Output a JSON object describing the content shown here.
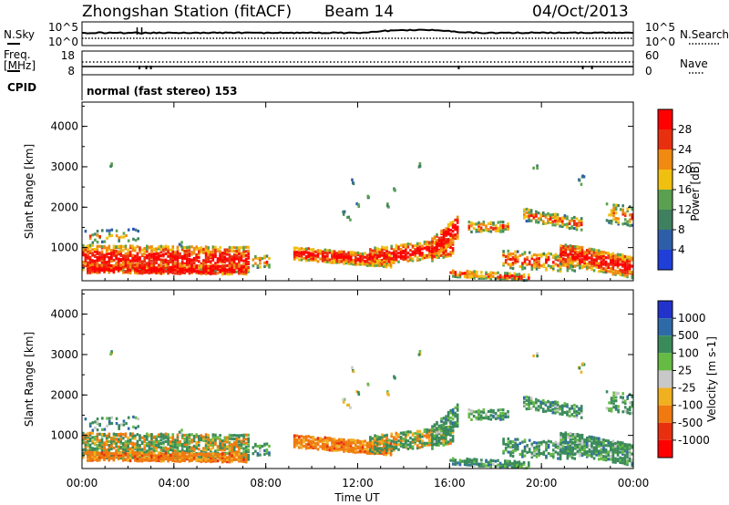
{
  "header": {
    "station": "Zhongshan Station (fitACF)",
    "beam": "Beam 14",
    "date": "04/Oct/2013"
  },
  "strip_top": {
    "left_label": "N.Sky",
    "right_label": "N.Search",
    "left_ticks": [
      "10^5",
      "10^0"
    ],
    "right_ticks": [
      "10^5",
      "10^0"
    ]
  },
  "strip_mid": {
    "left_label_1": "Freq.",
    "left_label_2": "[MHz]",
    "right_label": "Nave",
    "left_ticks": [
      "18",
      "8"
    ],
    "right_ticks": [
      "60",
      "0"
    ]
  },
  "cpid": {
    "label": "CPID",
    "mode": "normal (fast stereo) 153"
  },
  "chart_data": [
    {
      "type": "heatmap",
      "quantity": "power",
      "ylabel": "Slant Range [km]",
      "ylim": [
        180,
        4600
      ],
      "yticks": [
        "1000",
        "2000",
        "3000",
        "4000"
      ],
      "colorbar_label": "Power [dB]",
      "colorbar_ticks": [
        "4",
        "8",
        "12",
        "16",
        "20",
        "24",
        "28"
      ],
      "colors": [
        "#1f3fd8",
        "#2e5ea8",
        "#3f8060",
        "#5aa050",
        "#f0c010",
        "#f08a10",
        "#e83010",
        "#ff0000"
      ]
    },
    {
      "type": "heatmap",
      "quantity": "velocity",
      "ylabel": "Slant Range [km]",
      "ylim": [
        180,
        4600
      ],
      "yticks": [
        "1000",
        "2000",
        "3000",
        "4000"
      ],
      "colorbar_label": "Velocity [m s-1]",
      "colorbar_ticks": [
        "1000",
        "500",
        "100",
        "25",
        "-25",
        "-100",
        "-500",
        "-1000"
      ],
      "colors": [
        "#2233cc",
        "#2e6aa8",
        "#3a8a5a",
        "#66bb44",
        "#c8c8c8",
        "#f0b020",
        "#f07a10",
        "#e83010",
        "#ff0000"
      ]
    }
  ],
  "x_axis": {
    "label": "Time UT",
    "ticks": [
      "00:00",
      "04:00",
      "08:00",
      "12:00",
      "16:00",
      "20:00",
      "00:00"
    ],
    "range_hours": [
      0,
      24
    ]
  }
}
